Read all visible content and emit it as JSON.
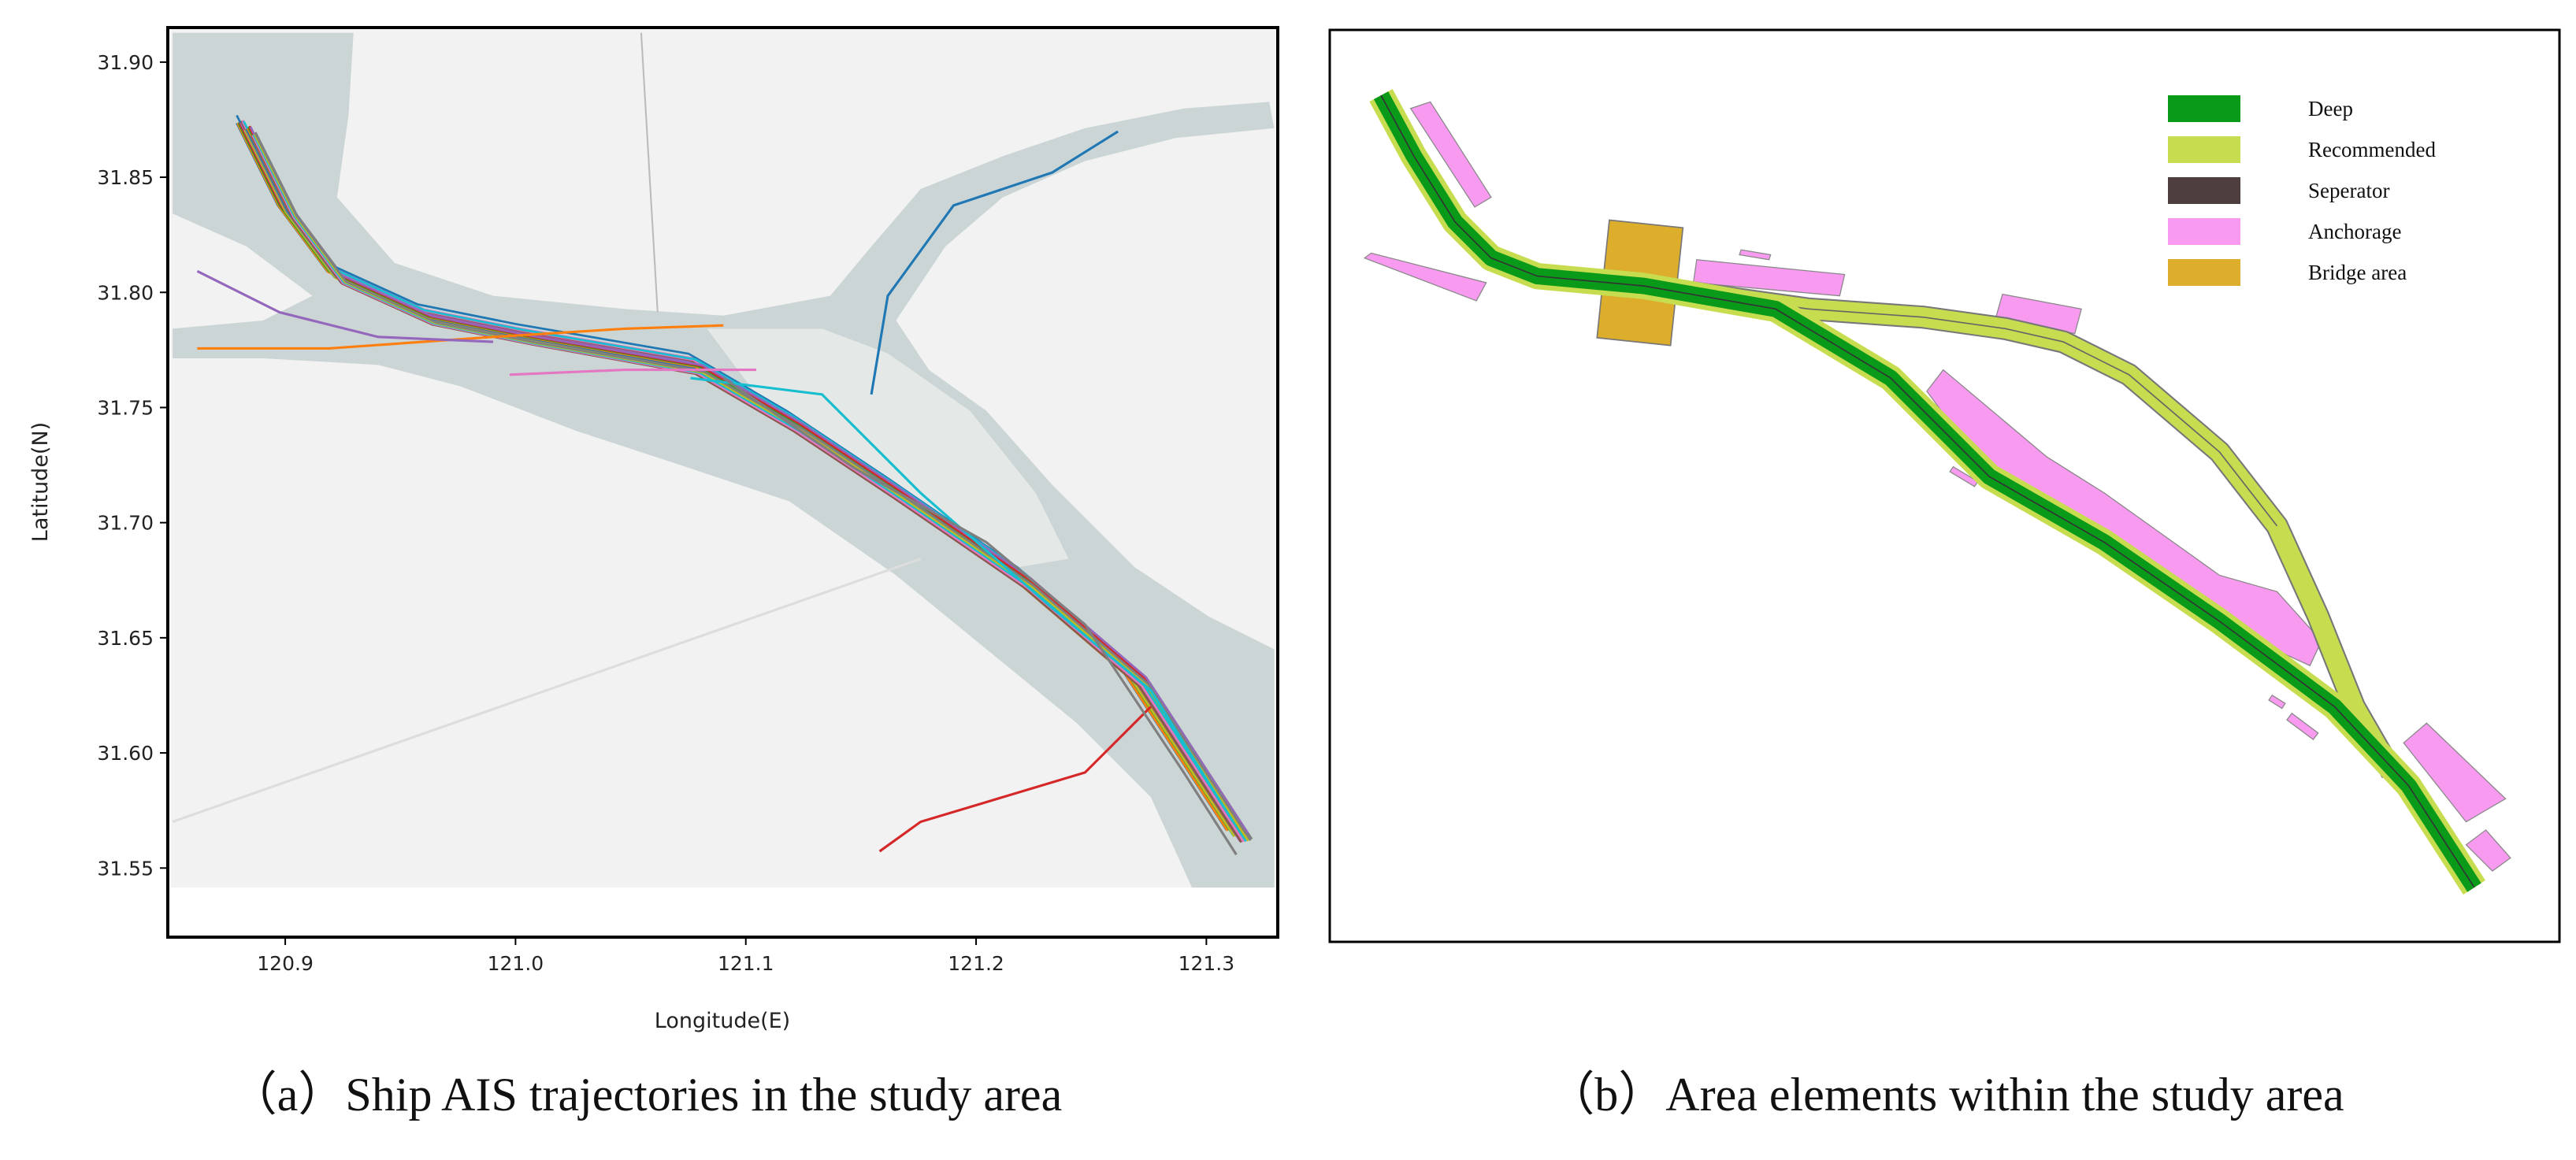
{
  "panels": [
    {
      "type": "map",
      "xlabel": "Longitude(E)",
      "ylabel": "Latitude(N)",
      "xlim": [
        120.849,
        121.331
      ],
      "ylim": [
        31.52,
        31.915
      ],
      "xticks": [
        120.9,
        {
          "value": 121.0,
          "label": "121.0"
        },
        121.1,
        121.2,
        121.3
      ],
      "yticks": [
        31.55,
        {
          "value": 31.6,
          "label": "31.60"
        },
        31.65,
        {
          "value": 31.7,
          "label": "31.70"
        },
        31.75,
        {
          "value": 31.8,
          "label": "31.80"
        },
        31.85,
        {
          "value": 31.9,
          "label": "31.90"
        }
      ],
      "caption": "（a）Ship AIS trajectories in the study area"
    },
    {
      "type": "diagram",
      "legend": [
        {
          "name": "Deep",
          "color": "#0a9a1a"
        },
        {
          "name": "Recommended",
          "color": "#c8dc50"
        },
        {
          "name": "Seperator",
          "color": "#4e3e3e"
        },
        {
          "name": "Anchorage",
          "color": "#f79af0"
        },
        {
          "name": "Bridge area",
          "color": "#dcae2c"
        }
      ],
      "caption": "（b）Area elements within the study area"
    }
  ]
}
